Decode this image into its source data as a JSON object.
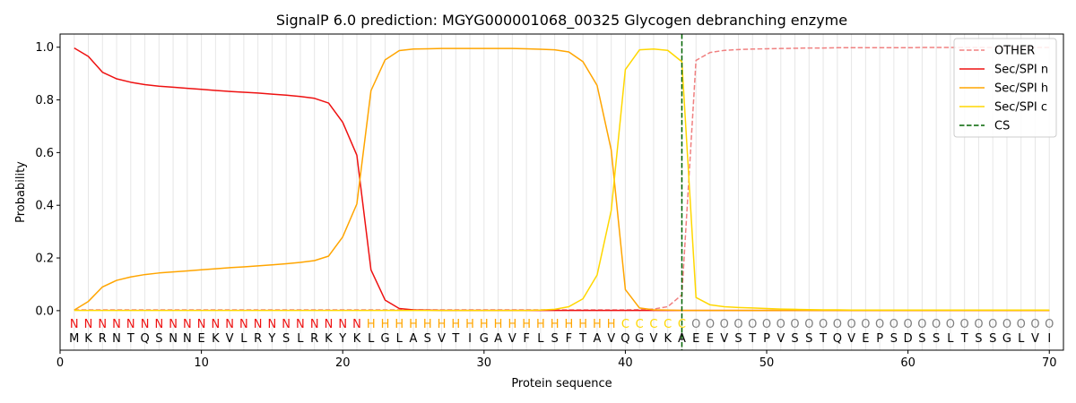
{
  "chart_data": {
    "type": "line",
    "title": "SignalP 6.0 prediction: MGYG000001068_00325 Glycogen debranching enzyme",
    "xlabel": "Protein sequence",
    "ylabel": "Probability",
    "xlim": [
      0,
      71
    ],
    "ylim": [
      -0.15,
      1.05
    ],
    "xticks": [
      0,
      10,
      20,
      30,
      40,
      50,
      60,
      70
    ],
    "yticks": [
      0.0,
      0.2,
      0.4,
      0.6,
      0.8,
      1.0
    ],
    "xtick_labels": [
      "0",
      "10",
      "20",
      "30",
      "40",
      "50",
      "60",
      "70"
    ],
    "ytick_labels": [
      "0.0",
      "0.2",
      "0.4",
      "0.6",
      "0.8",
      "1.0"
    ],
    "grid": "vertical lines at each residue",
    "legend_position": "top-right",
    "x": [
      1,
      2,
      3,
      4,
      5,
      6,
      7,
      8,
      9,
      10,
      11,
      12,
      13,
      14,
      15,
      16,
      17,
      18,
      19,
      20,
      21,
      22,
      23,
      24,
      25,
      26,
      27,
      28,
      29,
      30,
      31,
      32,
      33,
      34,
      35,
      36,
      37,
      38,
      39,
      40,
      41,
      42,
      43,
      44,
      45,
      46,
      47,
      48,
      49,
      50,
      51,
      52,
      53,
      54,
      55,
      56,
      57,
      58,
      59,
      60,
      61,
      62,
      63,
      64,
      65,
      66,
      67,
      68,
      69,
      70
    ],
    "series": [
      {
        "name": "OTHER",
        "color": "#f08080",
        "dash": "dashed",
        "values": [
          0.003,
          0.003,
          0.003,
          0.003,
          0.003,
          0.003,
          0.003,
          0.003,
          0.003,
          0.003,
          0.003,
          0.003,
          0.003,
          0.003,
          0.003,
          0.003,
          0.003,
          0.003,
          0.003,
          0.003,
          0.003,
          0.003,
          0.003,
          0.003,
          0.003,
          0.003,
          0.003,
          0.003,
          0.003,
          0.003,
          0.003,
          0.003,
          0.003,
          0.003,
          0.003,
          0.003,
          0.003,
          0.003,
          0.003,
          0.003,
          0.004,
          0.006,
          0.015,
          0.06,
          0.95,
          0.98,
          0.988,
          0.991,
          0.993,
          0.994,
          0.995,
          0.996,
          0.997,
          0.997,
          0.998,
          0.998,
          0.998,
          0.998,
          0.998,
          0.998,
          0.999,
          0.999,
          0.999,
          0.999,
          0.999,
          0.999,
          0.999,
          0.999,
          0.999,
          0.999
        ]
      },
      {
        "name": "Sec/SPI n",
        "color": "#ee1111",
        "dash": "solid",
        "values": [
          0.997,
          0.965,
          0.905,
          0.88,
          0.867,
          0.858,
          0.852,
          0.848,
          0.844,
          0.84,
          0.836,
          0.832,
          0.829,
          0.826,
          0.822,
          0.818,
          0.813,
          0.806,
          0.788,
          0.715,
          0.59,
          0.155,
          0.04,
          0.008,
          0.003,
          0.002,
          0.001,
          0.001,
          0.001,
          0.001,
          0.001,
          0.001,
          0.001,
          0.001,
          0.001,
          0.001,
          0.001,
          0.001,
          0.001,
          0.001,
          0.001,
          0.001,
          0.001,
          0.001,
          0.001,
          0.001,
          0.001,
          0.001,
          0.001,
          0.001,
          0.001,
          0.001,
          0.001,
          0.001,
          0.001,
          0.001,
          0.001,
          0.001,
          0.001,
          0.001,
          0.001,
          0.001,
          0.001,
          0.001,
          0.001,
          0.001,
          0.001,
          0.001,
          0.001,
          0.001
        ]
      },
      {
        "name": "Sec/SPI h",
        "color": "#ffa500",
        "dash": "solid",
        "values": [
          0.002,
          0.035,
          0.09,
          0.115,
          0.128,
          0.137,
          0.143,
          0.147,
          0.151,
          0.155,
          0.159,
          0.163,
          0.166,
          0.17,
          0.174,
          0.178,
          0.183,
          0.19,
          0.207,
          0.28,
          0.405,
          0.835,
          0.952,
          0.987,
          0.993,
          0.994,
          0.995,
          0.995,
          0.995,
          0.995,
          0.995,
          0.995,
          0.994,
          0.992,
          0.99,
          0.982,
          0.945,
          0.855,
          0.61,
          0.08,
          0.01,
          0.003,
          0.002,
          0.001,
          0.001,
          0.001,
          0.001,
          0.001,
          0.001,
          0.001,
          0.001,
          0.001,
          0.001,
          0.001,
          0.001,
          0.001,
          0.001,
          0.001,
          0.001,
          0.001,
          0.001,
          0.001,
          0.001,
          0.001,
          0.001,
          0.001,
          0.001,
          0.001,
          0.001,
          0.001
        ]
      },
      {
        "name": "Sec/SPI c",
        "color": "#ffd700",
        "dash": "solid",
        "values": [
          0.001,
          0.001,
          0.001,
          0.001,
          0.001,
          0.001,
          0.001,
          0.001,
          0.001,
          0.001,
          0.001,
          0.001,
          0.001,
          0.001,
          0.001,
          0.001,
          0.001,
          0.001,
          0.001,
          0.001,
          0.001,
          0.001,
          0.001,
          0.001,
          0.001,
          0.001,
          0.001,
          0.001,
          0.001,
          0.001,
          0.001,
          0.001,
          0.001,
          0.002,
          0.005,
          0.015,
          0.045,
          0.135,
          0.38,
          0.915,
          0.99,
          0.993,
          0.988,
          0.945,
          0.05,
          0.022,
          0.015,
          0.012,
          0.01,
          0.008,
          0.006,
          0.005,
          0.004,
          0.003,
          0.003,
          0.002,
          0.002,
          0.002,
          0.002,
          0.002,
          0.002,
          0.002,
          0.002,
          0.002,
          0.002,
          0.002,
          0.002,
          0.002,
          0.002,
          0.002
        ]
      }
    ],
    "cs_line": {
      "name": "CS",
      "x": 44,
      "color": "#006400",
      "dash": "dashed"
    },
    "sequence": [
      "M",
      "K",
      "R",
      "N",
      "T",
      "Q",
      "S",
      "N",
      "N",
      "E",
      "K",
      "V",
      "L",
      "R",
      "Y",
      "S",
      "L",
      "R",
      "K",
      "Y",
      "K",
      "L",
      "G",
      "L",
      "A",
      "S",
      "V",
      "T",
      "I",
      "G",
      "A",
      "V",
      "F",
      "L",
      "S",
      "F",
      "T",
      "A",
      "V",
      "Q",
      "G",
      "V",
      "K",
      "A",
      "E",
      "E",
      "V",
      "S",
      "T",
      "P",
      "V",
      "S",
      "S",
      "T",
      "Q",
      "V",
      "E",
      "P",
      "S",
      "D",
      "S",
      "S",
      "L",
      "T",
      "S",
      "S",
      "G",
      "L",
      "V",
      "I"
    ],
    "labels": [
      "N",
      "N",
      "N",
      "N",
      "N",
      "N",
      "N",
      "N",
      "N",
      "N",
      "N",
      "N",
      "N",
      "N",
      "N",
      "N",
      "N",
      "N",
      "N",
      "N",
      "N",
      "H",
      "H",
      "H",
      "H",
      "H",
      "H",
      "H",
      "H",
      "H",
      "H",
      "H",
      "H",
      "H",
      "H",
      "H",
      "H",
      "H",
      "H",
      "C",
      "C",
      "C",
      "C",
      "C",
      "O",
      "O",
      "O",
      "O",
      "O",
      "O",
      "O",
      "O",
      "O",
      "O",
      "O",
      "O",
      "O",
      "O",
      "O",
      "O",
      "O",
      "O",
      "O",
      "O",
      "O",
      "O",
      "O",
      "O",
      "O",
      "O"
    ],
    "label_colors": {
      "N": "#ee1111",
      "H": "#ffa500",
      "C": "#ffd700",
      "O": "#808080"
    }
  }
}
